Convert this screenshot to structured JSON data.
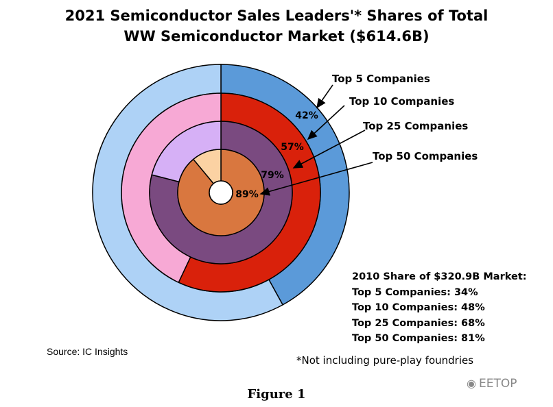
{
  "chart_data": {
    "type": "pie",
    "title": "2021 Semiconductor Sales Leaders'* Shares of Total",
    "subtitle": "WW Semiconductor Market ($614.6B)",
    "rings": [
      {
        "name": "Top 5 Companies",
        "value": 42,
        "label": "42%",
        "color": "#5b9ad9",
        "rest_color": "#aed2f6"
      },
      {
        "name": "Top 10 Companies",
        "value": 57,
        "label": "57%",
        "color": "#d9210b",
        "rest_color": "#f7a9d5"
      },
      {
        "name": "Top 25 Companies",
        "value": 79,
        "label": "79%",
        "color": "#7a4a80",
        "rest_color": "#d6b0f6"
      },
      {
        "name": "Top 50 Companies",
        "value": 89,
        "label": "89%",
        "color": "#d9773f",
        "rest_color": "#fbd2a3"
      }
    ],
    "note_2010": {
      "heading": "2010 Share of $320.9B Market:",
      "lines": [
        "Top 5 Companies: 34%",
        "Top 10 Companies: 48%",
        "Top 25 Companies: 68%",
        "Top 50 Companies: 81%"
      ]
    }
  },
  "source": "Source: IC Insights",
  "footnote": "*Not including pure-play foundries",
  "figure_label": "Figure 1",
  "watermark": {
    "icon": "wechat-icon",
    "text": "EETOP"
  }
}
